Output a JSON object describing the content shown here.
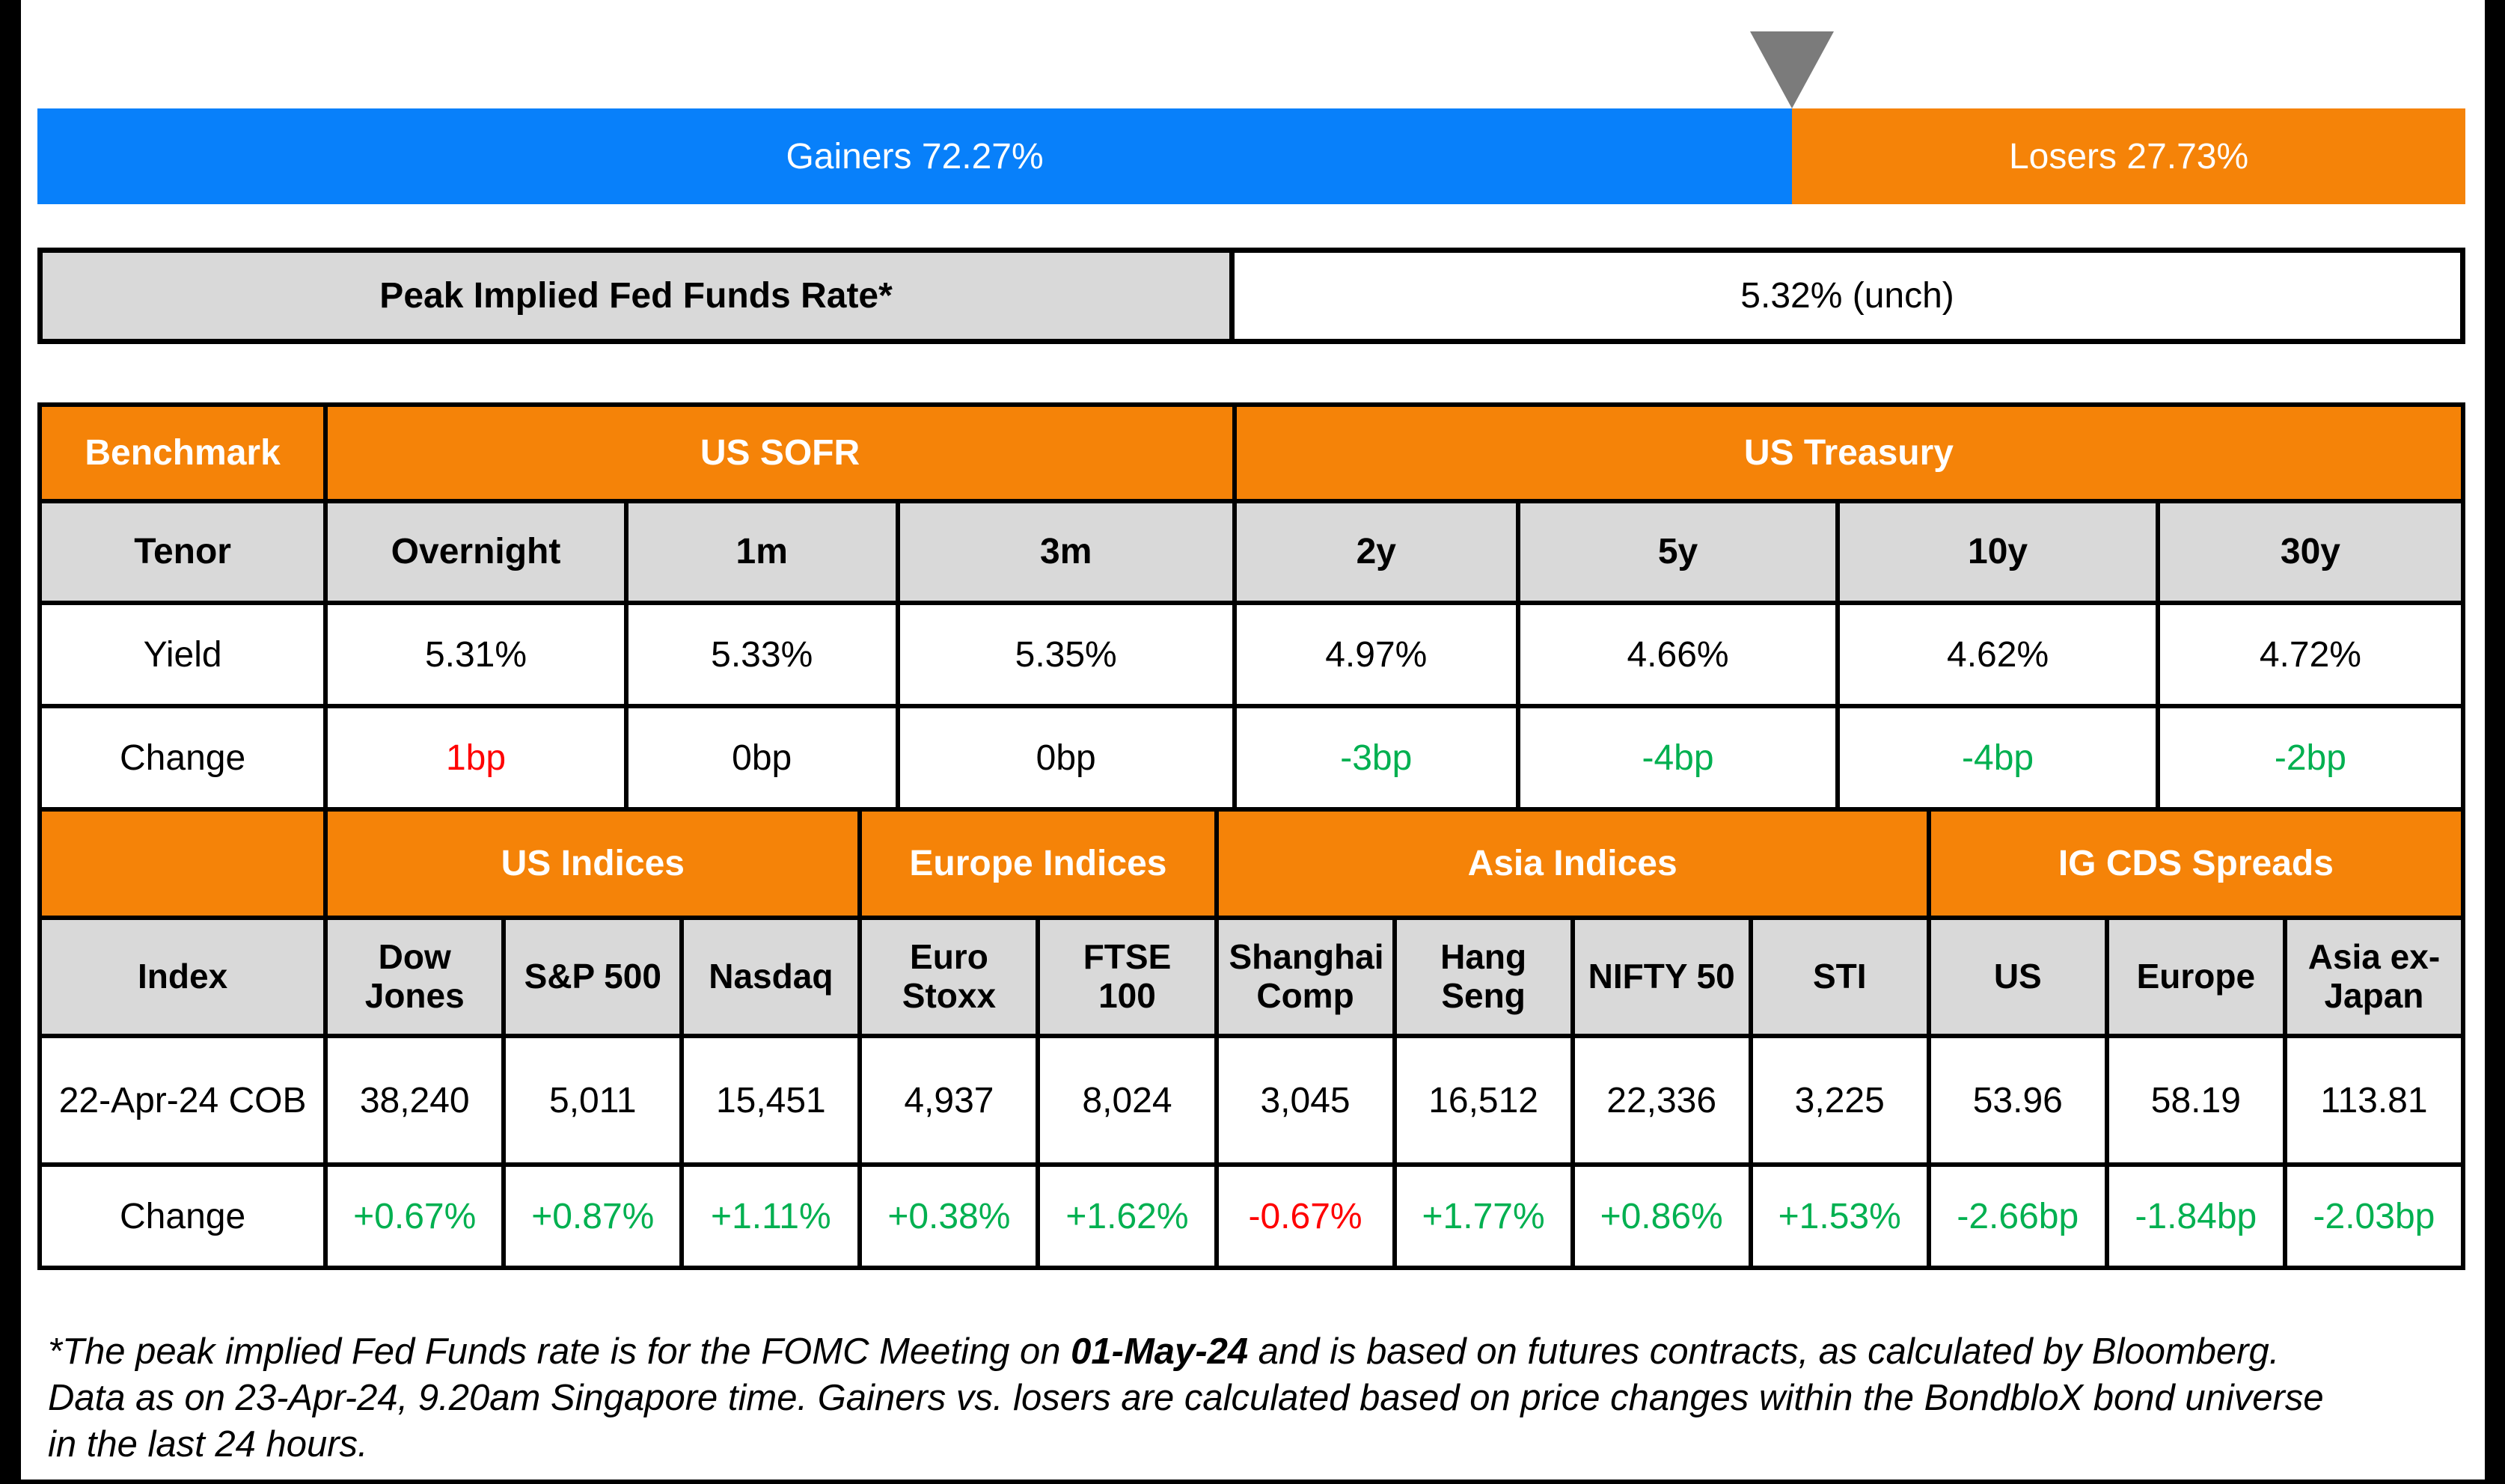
{
  "colors": {
    "blue": "#0880FA",
    "orange": "#F58308",
    "header_gray": "#D9D9D9",
    "triangle_gray": "#7B7B7B",
    "green": "#00B050",
    "red": "#FF0000",
    "black": "#000000"
  },
  "marker": {
    "icon": "down-triangle-icon",
    "position_pct": 72.27
  },
  "gainers_losers_bar": {
    "gainers": {
      "label": "Gainers 72.27%",
      "pct": 72.27
    },
    "losers": {
      "label": "Losers 27.73%",
      "pct": 27.73
    }
  },
  "fed_funds": {
    "label": "Peak Implied Fed Funds Rate*",
    "value": "5.32% (unch)"
  },
  "benchmark_table": {
    "corner_label": "Benchmark",
    "groups": [
      {
        "label": "US SOFR",
        "span": 3
      },
      {
        "label": "US Treasury",
        "span": 4
      }
    ],
    "row_labels": {
      "tenor": "Tenor",
      "yield": "Yield",
      "change": "Change"
    },
    "columns": [
      {
        "tenor": "Overnight",
        "yield": "5.31%",
        "change": "1bp",
        "change_class": "red"
      },
      {
        "tenor": "1m",
        "yield": "5.33%",
        "change": "0bp",
        "change_class": "black"
      },
      {
        "tenor": "3m",
        "yield": "5.35%",
        "change": "0bp",
        "change_class": "black"
      },
      {
        "tenor": "2y",
        "yield": "4.97%",
        "change": "-3bp",
        "change_class": "green"
      },
      {
        "tenor": "5y",
        "yield": "4.66%",
        "change": "-4bp",
        "change_class": "green"
      },
      {
        "tenor": "10y",
        "yield": "4.62%",
        "change": "-4bp",
        "change_class": "green"
      },
      {
        "tenor": "30y",
        "yield": "4.72%",
        "change": "-2bp",
        "change_class": "green"
      }
    ]
  },
  "indices_table": {
    "groups": [
      {
        "label": "US Indices",
        "span": 3
      },
      {
        "label": "Europe Indices",
        "span": 2
      },
      {
        "label": "Asia Indices",
        "span": 4
      },
      {
        "label": "IG CDS Spreads",
        "span": 3
      }
    ],
    "row_labels": {
      "index": "Index",
      "cob": "22-Apr-24 COB",
      "change": "Change"
    },
    "columns": [
      {
        "name": "Dow Jones",
        "cob": "38,240",
        "change": "+0.67%",
        "change_class": "green"
      },
      {
        "name": "S&P 500",
        "cob": "5,011",
        "change": "+0.87%",
        "change_class": "green"
      },
      {
        "name": "Nasdaq",
        "cob": "15,451",
        "change": "+1.11%",
        "change_class": "green"
      },
      {
        "name": "Euro Stoxx",
        "cob": "4,937",
        "change": "+0.38%",
        "change_class": "green"
      },
      {
        "name": "FTSE 100",
        "cob": "8,024",
        "change": "+1.62%",
        "change_class": "green"
      },
      {
        "name": "Shanghai Comp",
        "cob": "3,045",
        "change": "-0.67%",
        "change_class": "red"
      },
      {
        "name": "Hang Seng",
        "cob": "16,512",
        "change": "+1.77%",
        "change_class": "green"
      },
      {
        "name": "NIFTY 50",
        "cob": "22,336",
        "change": "+0.86%",
        "change_class": "green"
      },
      {
        "name": "STI",
        "cob": "3,225",
        "change": "+1.53%",
        "change_class": "green"
      },
      {
        "name": "US",
        "cob": "53.96",
        "change": "-2.66bp",
        "change_class": "green"
      },
      {
        "name": "Europe",
        "cob": "58.19",
        "change": "-1.84bp",
        "change_class": "green"
      },
      {
        "name": "Asia ex-Japan",
        "cob": "113.81",
        "change": "-2.03bp",
        "change_class": "green"
      }
    ]
  },
  "footnote": {
    "part1": "*The peak implied Fed Funds rate is for the FOMC Meeting on ",
    "bold_date": "01-May-24",
    "part2": " and is based on futures contracts, as calculated by Bloomberg. Data as on 23-Apr-24, 9.20am Singapore time. Gainers vs. losers are calculated based on price changes within the BondbloX bond universe in the last 24 hours."
  },
  "chart_data": [
    {
      "type": "bar",
      "title": "Gainers vs Losers (BondbloX bond universe, last 24 hours)",
      "orientation": "horizontal_stacked",
      "categories": [
        "Gainers",
        "Losers"
      ],
      "values": [
        72.27,
        27.73
      ],
      "unit": "%",
      "colors": [
        "#0880FA",
        "#F58308"
      ],
      "annotations": [
        "Gray down-triangle marker at the 72.27% gainers/losers boundary"
      ]
    },
    {
      "type": "table",
      "title": "Peak Implied Fed Funds Rate*",
      "columns": [
        "Peak Implied Fed Funds Rate*"
      ],
      "rows": [
        [
          "5.32% (unch)"
        ]
      ]
    },
    {
      "type": "table",
      "title": "Benchmark",
      "column_groups": [
        "US SOFR: Overnight, 1m, 3m",
        "US Treasury: 2y, 5y, 10y, 30y"
      ],
      "columns": [
        "Tenor",
        "Overnight",
        "1m",
        "3m",
        "2y",
        "5y",
        "10y",
        "30y"
      ],
      "rows": [
        [
          "Yield",
          "5.31%",
          "5.33%",
          "5.35%",
          "4.97%",
          "4.66%",
          "4.62%",
          "4.72%"
        ],
        [
          "Change",
          "1bp",
          "0bp",
          "0bp",
          "-3bp",
          "-4bp",
          "-4bp",
          "-2bp"
        ]
      ]
    },
    {
      "type": "table",
      "title": "Indices and IG CDS Spreads",
      "column_groups": [
        "US Indices: Dow Jones, S&P 500, Nasdaq",
        "Europe Indices: Euro Stoxx, FTSE 100",
        "Asia Indices: Shanghai Comp, Hang Seng, NIFTY 50, STI",
        "IG CDS Spreads: US, Europe, Asia ex-Japan"
      ],
      "columns": [
        "Index",
        "Dow Jones",
        "S&P 500",
        "Nasdaq",
        "Euro Stoxx",
        "FTSE 100",
        "Shanghai Comp",
        "Hang Seng",
        "NIFTY 50",
        "STI",
        "US",
        "Europe",
        "Asia ex-Japan"
      ],
      "rows": [
        [
          "22-Apr-24 COB",
          "38,240",
          "5,011",
          "15,451",
          "4,937",
          "8,024",
          "3,045",
          "16,512",
          "22,336",
          "3,225",
          "53.96",
          "58.19",
          "113.81"
        ],
        [
          "Change",
          "+0.67%",
          "+0.87%",
          "+1.11%",
          "+0.38%",
          "+1.62%",
          "-0.67%",
          "+1.77%",
          "+0.86%",
          "+1.53%",
          "-2.66bp",
          "-1.84bp",
          "-2.03bp"
        ]
      ]
    }
  ]
}
